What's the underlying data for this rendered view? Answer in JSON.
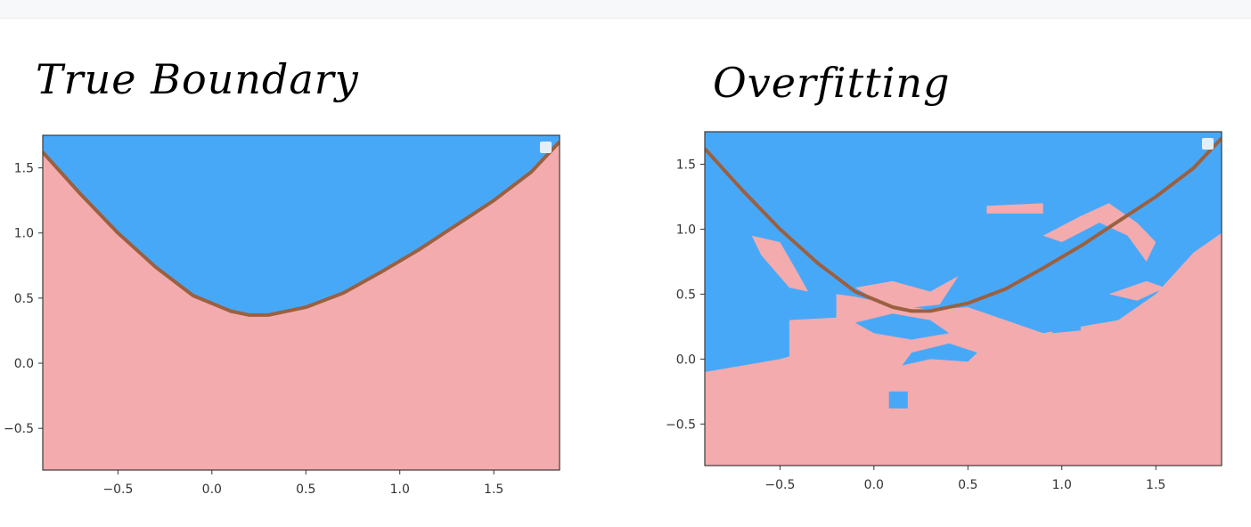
{
  "panels": [
    {
      "title": "True Boundary"
    },
    {
      "title": "Overfitting"
    }
  ],
  "chart_data": [
    {
      "type": "area",
      "title": "True Boundary",
      "xlabel": "",
      "ylabel": "",
      "xlim": [
        -0.9,
        1.85
      ],
      "ylim": [
        -0.82,
        1.75
      ],
      "xticks": [
        -0.5,
        0.0,
        0.5,
        1.0,
        1.5
      ],
      "yticks": [
        -0.5,
        0.0,
        0.5,
        1.0,
        1.5
      ],
      "grid": false,
      "colors": {
        "upper_region": "#48a8f8",
        "lower_region": "#f3abad",
        "boundary": "#9b6040"
      },
      "boundary": {
        "x": [
          -0.9,
          -0.7,
          -0.5,
          -0.3,
          -0.1,
          0.1,
          0.2,
          0.3,
          0.5,
          0.7,
          0.9,
          1.1,
          1.3,
          1.5,
          1.7,
          1.85
        ],
        "y": [
          1.62,
          1.3,
          1.0,
          0.74,
          0.52,
          0.4,
          0.37,
          0.37,
          0.43,
          0.54,
          0.7,
          0.87,
          1.06,
          1.25,
          1.47,
          1.7
        ]
      }
    },
    {
      "type": "area",
      "title": "Overfitting",
      "xlabel": "",
      "ylabel": "",
      "xlim": [
        -0.9,
        1.85
      ],
      "ylim": [
        -0.82,
        1.75
      ],
      "xticks": [
        -0.5,
        0.0,
        0.5,
        1.0,
        1.5
      ],
      "yticks": [
        -0.5,
        0.0,
        0.5,
        1.0,
        1.5
      ],
      "grid": false,
      "colors": {
        "upper_region": "#48a8f8",
        "lower_region": "#f3abad",
        "boundary": "#9b6040"
      },
      "boundary": {
        "x": [
          -0.9,
          -0.7,
          -0.5,
          -0.3,
          -0.1,
          0.1,
          0.2,
          0.3,
          0.5,
          0.7,
          0.9,
          1.1,
          1.3,
          1.5,
          1.7,
          1.85
        ],
        "y": [
          1.62,
          1.3,
          1.0,
          0.74,
          0.52,
          0.4,
          0.37,
          0.37,
          0.43,
          0.54,
          0.7,
          0.87,
          1.06,
          1.25,
          1.47,
          1.7
        ]
      },
      "learned_lower_boundary": {
        "x": [
          -0.9,
          -0.7,
          -0.5,
          -0.45,
          -0.45,
          -0.2,
          -0.2,
          -0.1,
          0.1,
          0.3,
          0.5,
          0.7,
          0.9,
          1.1,
          1.3,
          1.5,
          1.7,
          1.85
        ],
        "y": [
          -0.1,
          -0.05,
          0.0,
          0.02,
          0.3,
          0.32,
          0.5,
          0.48,
          0.42,
          0.38,
          0.4,
          0.3,
          0.2,
          0.25,
          0.3,
          0.5,
          0.82,
          0.97
        ]
      },
      "pink_islands": [
        {
          "x": [
            -0.65,
            -0.5,
            -0.4,
            -0.35,
            -0.45,
            -0.6
          ],
          "y": [
            0.95,
            0.9,
            0.65,
            0.52,
            0.55,
            0.8
          ]
        },
        {
          "x": [
            -0.1,
            0.1,
            0.3,
            0.45,
            0.35,
            0.1
          ],
          "y": [
            0.55,
            0.6,
            0.52,
            0.64,
            0.42,
            0.38
          ]
        },
        {
          "x": [
            0.6,
            0.9,
            0.9,
            0.6
          ],
          "y": [
            1.18,
            1.2,
            1.12,
            1.12
          ]
        },
        {
          "x": [
            0.9,
            1.1,
            1.25,
            1.4,
            1.5,
            1.45,
            1.35,
            1.2,
            1.0
          ],
          "y": [
            0.95,
            1.1,
            1.2,
            1.05,
            0.9,
            0.75,
            0.95,
            1.05,
            0.9
          ]
        },
        {
          "x": [
            1.25,
            1.45,
            1.55,
            1.4
          ],
          "y": [
            0.5,
            0.6,
            0.55,
            0.45
          ]
        }
      ],
      "blue_islands": [
        {
          "x": [
            -0.1,
            0.1,
            0.3,
            0.4,
            0.2,
            0.0
          ],
          "y": [
            0.28,
            0.35,
            0.3,
            0.2,
            0.15,
            0.2
          ]
        },
        {
          "x": [
            0.2,
            0.4,
            0.55,
            0.5,
            0.3,
            0.15
          ],
          "y": [
            0.05,
            0.12,
            0.05,
            -0.02,
            0.0,
            -0.05
          ]
        },
        {
          "x": [
            0.08,
            0.18,
            0.18,
            0.08
          ],
          "y": [
            -0.25,
            -0.25,
            -0.38,
            -0.38
          ]
        },
        {
          "x": [
            0.95,
            1.1,
            1.1,
            0.95
          ],
          "y": [
            0.24,
            0.27,
            0.22,
            0.2
          ]
        }
      ]
    }
  ]
}
